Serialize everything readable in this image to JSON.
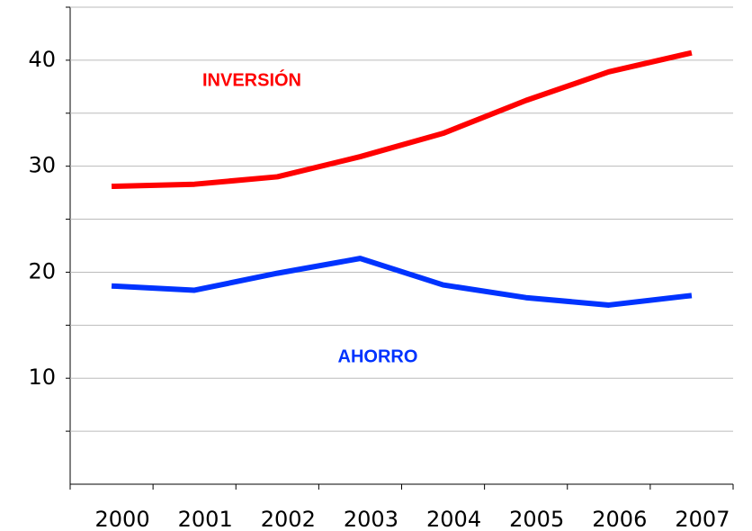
{
  "chart_data": {
    "type": "line",
    "categories": [
      "2000",
      "2001",
      "2002",
      "2003",
      "2004",
      "2005",
      "2006",
      "2007"
    ],
    "series": [
      {
        "name": "INVERSIÓN",
        "color": "#ff0000",
        "values": [
          28.1,
          28.3,
          29.0,
          30.9,
          33.1,
          36.2,
          38.9,
          40.7
        ]
      },
      {
        "name": "AHORRO",
        "color": "#0033ff",
        "values": [
          18.7,
          18.3,
          19.9,
          21.3,
          18.8,
          17.6,
          16.9,
          17.8
        ]
      }
    ],
    "ylim": [
      0,
      45
    ],
    "yticks": [
      10,
      20,
      30,
      40
    ],
    "minor_yticks": [
      5,
      15,
      25,
      35,
      45
    ],
    "grid": true
  }
}
